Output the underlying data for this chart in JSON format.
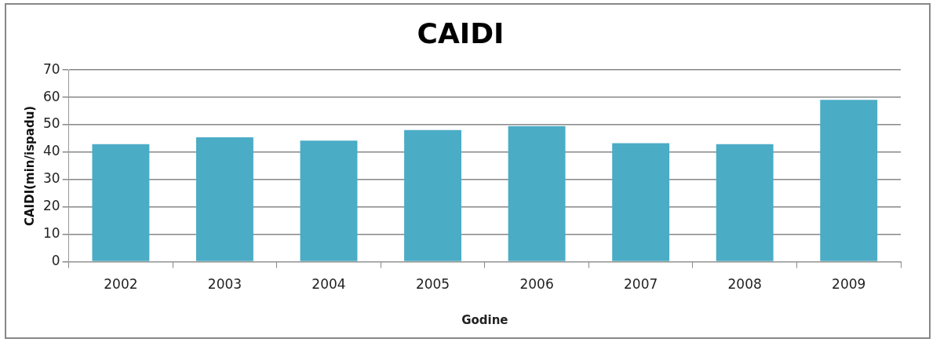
{
  "chart_data": {
    "type": "bar",
    "title": "CAIDI",
    "xlabel": "Godine",
    "ylabel": "CAIDI(min/ispadu)",
    "categories": [
      "2002",
      "2003",
      "2004",
      "2005",
      "2006",
      "2007",
      "2008",
      "2009"
    ],
    "values": [
      42.9,
      45.4,
      44.2,
      48.1,
      49.5,
      43.3,
      42.9,
      59.1
    ],
    "color": "#4bacc6",
    "ylim": [
      0,
      70
    ],
    "yticks": [
      0,
      10,
      20,
      30,
      40,
      50,
      60,
      70
    ],
    "grid": "y",
    "legend": false
  }
}
